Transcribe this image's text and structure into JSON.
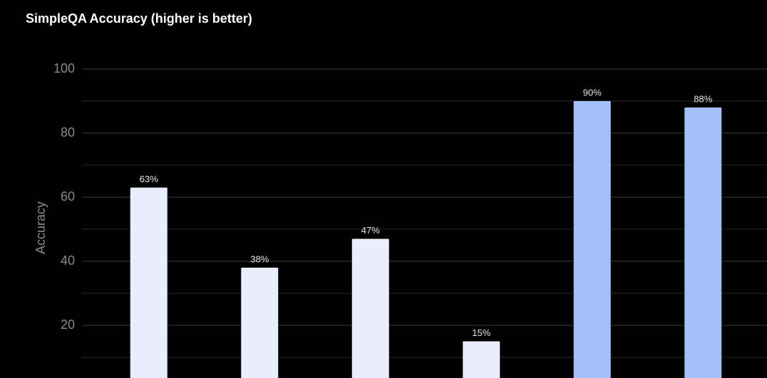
{
  "chart_data": {
    "type": "bar",
    "title": "SimpleQA Accuracy (higher is better)",
    "y_label": "Accuracy",
    "categories": [
      null,
      null,
      null,
      null,
      null,
      null
    ],
    "values": [
      63,
      38,
      47,
      15,
      90,
      88
    ],
    "value_labels": [
      "63%",
      "38%",
      "47%",
      "15%",
      "90%",
      "88%"
    ],
    "colors": [
      "#e8eefc",
      "#e8eefc",
      "#e8eefc",
      "#e8eefc",
      "#a3bef8",
      "#a3bef8"
    ],
    "ylim": [
      0,
      100
    ],
    "yticks": [
      20,
      40,
      60,
      80,
      100
    ],
    "minor_yticks": [
      10,
      30,
      50,
      70,
      90
    ],
    "grid": true
  }
}
